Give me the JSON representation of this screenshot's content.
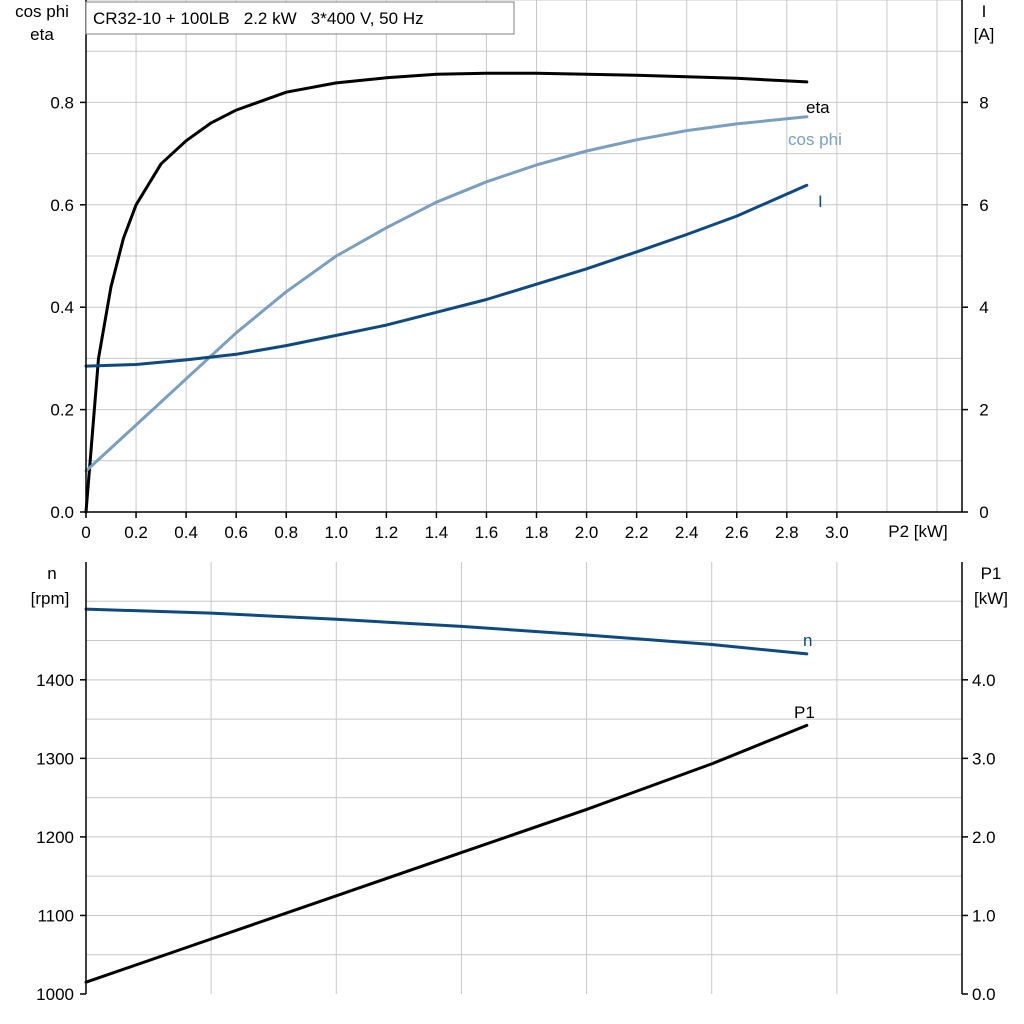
{
  "colors": {
    "eta": "#000000",
    "cos_phi": "#7b9fbf",
    "current": "#0e4a80",
    "speed": "#0e4a80",
    "p1": "#000000",
    "grid": "#c8c8c8"
  },
  "chart_data": [
    {
      "type": "line",
      "title": "CR32-10 + 100LB   2.2 kW   3*400 V, 50 Hz",
      "xlabel": "P2 [kW]",
      "ylabel_left": [
        "cos phi",
        "eta"
      ],
      "ylabel_right": [
        "I",
        "[A]"
      ],
      "xlim": [
        0,
        3.5
      ],
      "ylim_left": [
        0,
        1.0
      ],
      "ylim_right": [
        0,
        10
      ],
      "grid": true,
      "x_ticks": [
        "0",
        "0.2",
        "0.4",
        "0.6",
        "0.8",
        "1.0",
        "1.2",
        "1.4",
        "1.6",
        "1.8",
        "2.0",
        "2.2",
        "2.4",
        "2.6",
        "2.8",
        "3.0"
      ],
      "y_ticks_left": [
        "0.0",
        "0.2",
        "0.4",
        "0.6",
        "0.8"
      ],
      "y_ticks_right": [
        "0",
        "2",
        "4",
        "6",
        "8"
      ],
      "series": [
        {
          "name": "eta",
          "axis": "left",
          "x": [
            0,
            0.02,
            0.05,
            0.1,
            0.15,
            0.2,
            0.3,
            0.4,
            0.5,
            0.6,
            0.8,
            1.0,
            1.2,
            1.4,
            1.6,
            1.8,
            2.0,
            2.2,
            2.4,
            2.6,
            2.88
          ],
          "y": [
            0.0,
            0.12,
            0.3,
            0.44,
            0.535,
            0.6,
            0.68,
            0.725,
            0.76,
            0.785,
            0.82,
            0.838,
            0.848,
            0.855,
            0.857,
            0.857,
            0.855,
            0.853,
            0.85,
            0.847,
            0.84
          ]
        },
        {
          "name": "cos phi",
          "axis": "left",
          "x": [
            0,
            0.2,
            0.4,
            0.6,
            0.8,
            1.0,
            1.2,
            1.4,
            1.6,
            1.8,
            2.0,
            2.2,
            2.4,
            2.6,
            2.88
          ],
          "y": [
            0.08,
            0.17,
            0.26,
            0.35,
            0.43,
            0.5,
            0.555,
            0.605,
            0.645,
            0.678,
            0.705,
            0.727,
            0.745,
            0.758,
            0.772
          ]
        },
        {
          "name": "I",
          "axis": "right",
          "x": [
            0,
            0.2,
            0.4,
            0.6,
            0.8,
            1.0,
            1.2,
            1.4,
            1.6,
            1.8,
            2.0,
            2.2,
            2.4,
            2.6,
            2.88
          ],
          "y": [
            2.85,
            2.88,
            2.97,
            3.08,
            3.25,
            3.45,
            3.65,
            3.9,
            4.15,
            4.45,
            4.75,
            5.08,
            5.42,
            5.78,
            6.38
          ]
        }
      ]
    },
    {
      "type": "line",
      "ylabel_left": [
        "n",
        "[rpm]"
      ],
      "ylabel_right": [
        "P1",
        "[kW]"
      ],
      "xlim": [
        0,
        3.5
      ],
      "ylim_left": [
        1000,
        1500
      ],
      "ylim_right": [
        0,
        5.0
      ],
      "grid": true,
      "y_ticks_left": [
        "1000",
        "1100",
        "1200",
        "1300",
        "1400"
      ],
      "y_ticks_right": [
        "0.0",
        "1.0",
        "2.0",
        "3.0",
        "4.0"
      ],
      "series": [
        {
          "name": "n",
          "axis": "left",
          "x": [
            0,
            0.5,
            1.0,
            1.5,
            2.0,
            2.5,
            2.88
          ],
          "y": [
            1490,
            1485,
            1477,
            1468,
            1457,
            1445,
            1433
          ]
        },
        {
          "name": "P1",
          "axis": "right",
          "x": [
            0,
            0.5,
            1.0,
            1.5,
            2.0,
            2.5,
            2.88
          ],
          "y": [
            0.15,
            0.7,
            1.25,
            1.8,
            2.35,
            2.93,
            3.42
          ]
        }
      ]
    }
  ]
}
